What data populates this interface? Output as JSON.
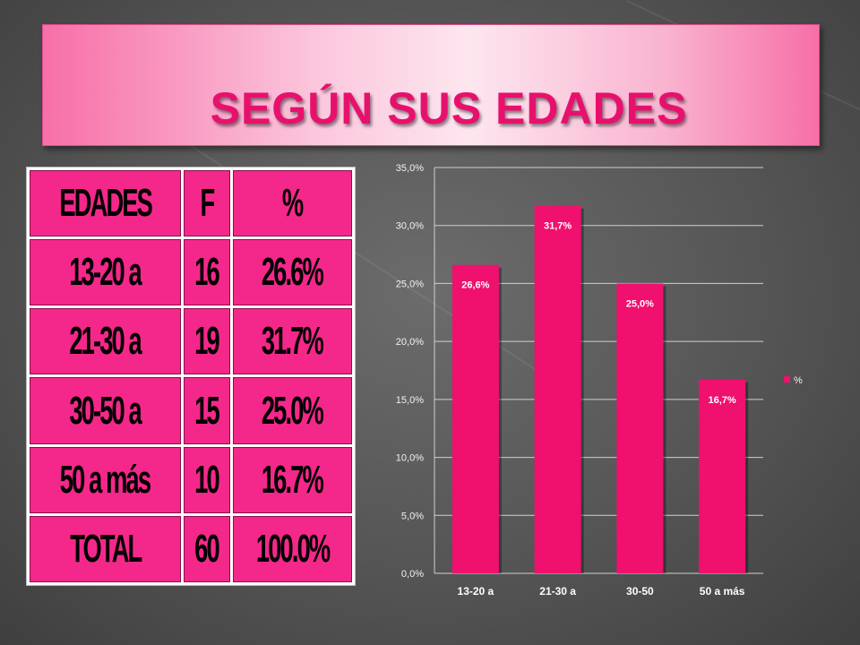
{
  "title": "SEGÚN SUS EDADES",
  "table": {
    "headers": [
      "EDADES",
      "F",
      "%"
    ],
    "rows": [
      [
        "13-20 a",
        "16",
        "26.6%"
      ],
      [
        "21-30 a",
        "19",
        "31.7%"
      ],
      [
        "30-50 a",
        "15",
        "25.0%"
      ],
      [
        "50 a más",
        "10",
        "16.7%"
      ],
      [
        "TOTAL",
        "60",
        "100.0%"
      ]
    ]
  },
  "chart_data": {
    "type": "bar",
    "categories": [
      "13-20 a",
      "21-30 a",
      "30-50",
      "50 a más"
    ],
    "series": [
      {
        "name": "%",
        "values": [
          26.6,
          31.7,
          25.0,
          16.7
        ],
        "labels": [
          "26,6%",
          "31,7%",
          "25,0%",
          "16,7%"
        ]
      }
    ],
    "ylim": [
      0,
      35
    ],
    "yticks": [
      "0,0%",
      "5,0%",
      "10,0%",
      "15,0%",
      "20,0%",
      "25,0%",
      "30,0%",
      "35,0%"
    ],
    "grid": true,
    "legend": "right",
    "bar_color": "#f0106e"
  }
}
